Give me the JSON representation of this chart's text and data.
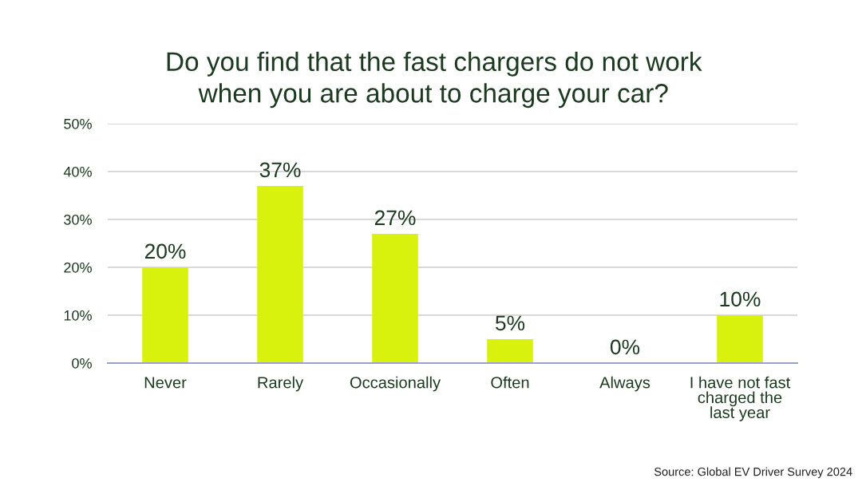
{
  "chart_data": {
    "type": "bar",
    "title": "Do you find that the fast chargers do not work when you are about to charge your car?",
    "categories": [
      "Never",
      "Rarely",
      "Occasionally",
      "Often",
      "Always",
      "I have not fast charged the last year"
    ],
    "values": [
      20,
      37,
      27,
      5,
      0,
      10
    ],
    "value_labels": [
      "20%",
      "37%",
      "27%",
      "5%",
      "0%",
      "10%"
    ],
    "color": "#d9f20d",
    "ylim": [
      0,
      50
    ],
    "yticks": [
      {
        "value": 0,
        "label": "0%"
      },
      {
        "value": 10,
        "label": "10%"
      },
      {
        "value": 20,
        "label": "20%"
      },
      {
        "value": 30,
        "label": "30%"
      },
      {
        "value": 40,
        "label": "40%"
      },
      {
        "value": 50,
        "label": "50%"
      }
    ],
    "grid": "y",
    "annotations": [
      "Source: Global EV Driver Survey 2024"
    ]
  }
}
